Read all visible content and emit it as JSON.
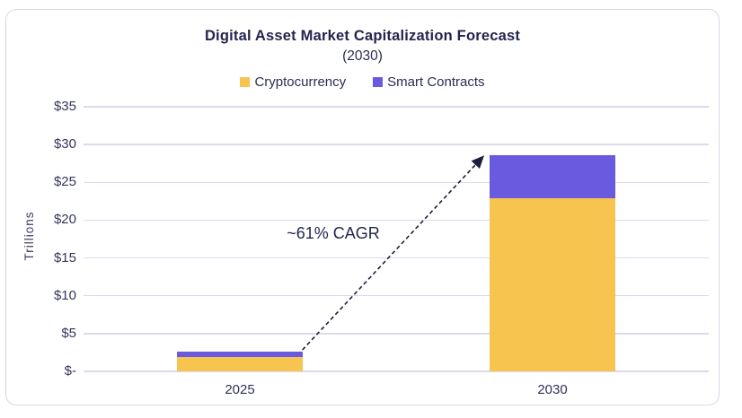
{
  "page": {
    "background": "#FFFFFF"
  },
  "card": {
    "border_color": "#D7D7E5",
    "background": "#FFFFFF"
  },
  "chart_data": {
    "type": "bar",
    "stacked": true,
    "title": "Digital Asset Market Capitalization Forecast",
    "subtitle": "(2030)",
    "ylabel": "Trillions",
    "categories": [
      "2025",
      "2030"
    ],
    "series": [
      {
        "name": "Cryptocurrency",
        "color": "#F6C44F",
        "values": [
          1.9,
          22.9
        ]
      },
      {
        "name": "Smart Contracts",
        "color": "#6A5AE0",
        "values": [
          0.7,
          5.7
        ]
      }
    ],
    "ylim": [
      0,
      35
    ],
    "ytick_step": 5,
    "ytick_labels": [
      "$-",
      "$5",
      "$10",
      "$15",
      "$20",
      "$25",
      "$30",
      "$35"
    ],
    "grid": true,
    "legend_position": "top",
    "annotation": {
      "text": "~61% CAGR"
    },
    "colors": {
      "gridline": "#DCDAEC",
      "arrow": "#1D1F3E",
      "title_text": "#23254D",
      "axis_text": "#34365C"
    }
  }
}
